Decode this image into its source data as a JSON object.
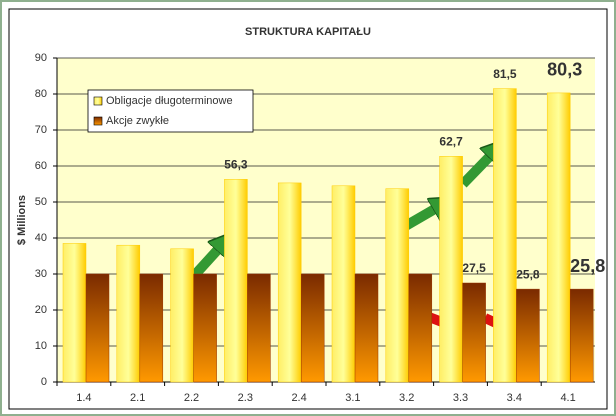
{
  "chart_data": {
    "type": "bar",
    "title": "STRUKTURA KAPITAŁU",
    "y_label": "$ Millions",
    "categories": [
      "1.4",
      "2.1",
      "2.2",
      "2.3",
      "2.4",
      "3.1",
      "3.2",
      "3.3",
      "3.4",
      "4.1"
    ],
    "series": [
      {
        "name": "Obligacje długoterminowe",
        "color": "#ffcc00",
        "values": [
          38.5,
          38,
          37,
          56.3,
          55.3,
          54.5,
          53.7,
          62.7,
          81.5,
          80.3
        ],
        "value_labels": [
          null,
          null,
          null,
          "56,3",
          null,
          null,
          null,
          "62,7",
          "81,5",
          "80,3"
        ]
      },
      {
        "name": "Akcje zwykłe",
        "color": "#993300",
        "values": [
          30,
          30,
          30,
          30,
          30,
          30,
          30,
          27.5,
          25.8,
          25.8
        ],
        "value_labels": [
          null,
          null,
          null,
          null,
          null,
          null,
          null,
          "27,5",
          "25,8",
          "25,8"
        ]
      }
    ],
    "ylim": [
      0,
      90
    ],
    "yticks": [
      0,
      10,
      20,
      30,
      40,
      50,
      60,
      70,
      80,
      90
    ],
    "grid": true,
    "legend": "upper left"
  }
}
